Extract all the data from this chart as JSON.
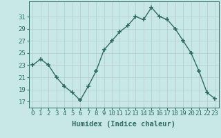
{
  "x": [
    0,
    1,
    2,
    3,
    4,
    5,
    6,
    7,
    8,
    9,
    10,
    11,
    12,
    13,
    14,
    15,
    16,
    17,
    18,
    19,
    20,
    21,
    22,
    23
  ],
  "y": [
    23,
    24,
    23,
    21,
    19.5,
    18.5,
    17.2,
    19.5,
    22,
    25.5,
    27,
    28.5,
    29.5,
    31,
    30.5,
    32.5,
    31,
    30.5,
    29,
    27,
    25,
    22,
    18.5,
    17.5
  ],
  "line_color": "#2E6B5E",
  "marker": "+",
  "marker_size": 4,
  "marker_lw": 1.2,
  "line_width": 1.0,
  "bg_color": "#C8E8E8",
  "grid_color": "#B8CECE",
  "xlabel": "Humidex (Indice chaleur)",
  "xlim": [
    -0.5,
    23.5
  ],
  "ylim": [
    16,
    33.5
  ],
  "yticks": [
    17,
    19,
    21,
    23,
    25,
    27,
    29,
    31
  ],
  "xticks": [
    0,
    1,
    2,
    3,
    4,
    5,
    6,
    7,
    8,
    9,
    10,
    11,
    12,
    13,
    14,
    15,
    16,
    17,
    18,
    19,
    20,
    21,
    22,
    23
  ],
  "xlabel_fontsize": 7.5,
  "tick_fontsize": 6.5,
  "label_color": "#2E6B5E"
}
